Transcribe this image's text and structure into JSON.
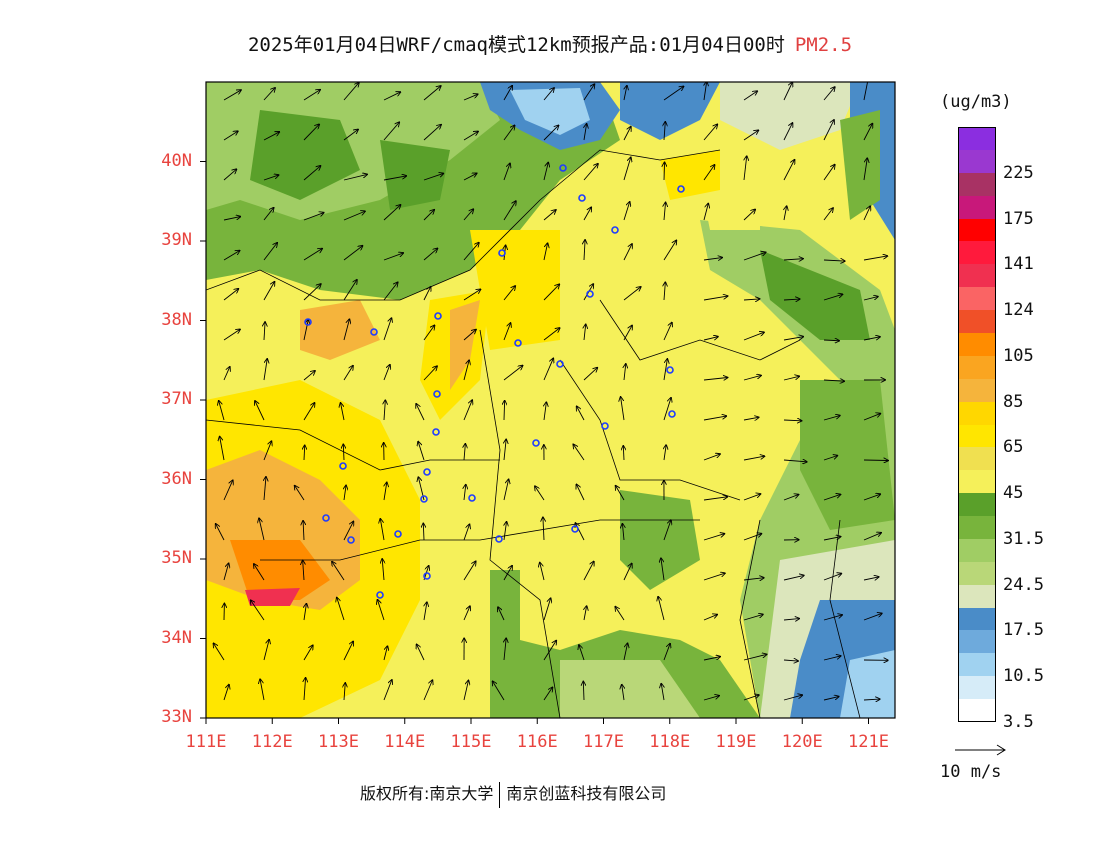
{
  "title": {
    "main": "2025年01月04日WRF/cmaq模式12km预报产品:01月04日00时",
    "pollutant": "PM2.5"
  },
  "map": {
    "lat_labels": [
      "33N",
      "34N",
      "35N",
      "36N",
      "37N",
      "38N",
      "39N",
      "40N"
    ],
    "lon_labels": [
      "111E",
      "112E",
      "113E",
      "114E",
      "115E",
      "116E",
      "117E",
      "118E",
      "119E",
      "120E",
      "121E"
    ],
    "lat_range": [
      33,
      41
    ],
    "lon_range": [
      111,
      121.4
    ]
  },
  "legend": {
    "unit": "(ug/m3)",
    "bins": [
      {
        "color": "#8b2ee0",
        "label": ""
      },
      {
        "color": "#9a38d0",
        "label": "225"
      },
      {
        "color": "#a83264",
        "label": ""
      },
      {
        "color": "#c8187a",
        "label": "175"
      },
      {
        "color": "#ff0000",
        "label": ""
      },
      {
        "color": "#ff1a3c",
        "label": "141"
      },
      {
        "color": "#f03050",
        "label": ""
      },
      {
        "color": "#fa6464",
        "label": "124"
      },
      {
        "color": "#f05028",
        "label": ""
      },
      {
        "color": "#ff8c00",
        "label": "105"
      },
      {
        "color": "#faa520",
        "label": ""
      },
      {
        "color": "#f5b43c",
        "label": "85"
      },
      {
        "color": "#ffd700",
        "label": ""
      },
      {
        "color": "#ffe600",
        "label": "65"
      },
      {
        "color": "#f0e050",
        "label": ""
      },
      {
        "color": "#f5f05a",
        "label": "45"
      },
      {
        "color": "#5aa02a",
        "label": ""
      },
      {
        "color": "#78b43c",
        "label": "31.5"
      },
      {
        "color": "#a0cd64",
        "label": ""
      },
      {
        "color": "#b9d778",
        "label": "24.5"
      },
      {
        "color": "#dce6bc",
        "label": ""
      },
      {
        "color": "#4a8cc8",
        "label": "17.5"
      },
      {
        "color": "#6eaadc",
        "label": ""
      },
      {
        "color": "#a0d2f0",
        "label": "10.5"
      },
      {
        "color": "#d6ecf8",
        "label": ""
      },
      {
        "color": "#ffffff",
        "label": "3.5"
      }
    ]
  },
  "wind_reference": {
    "label": "10 m/s"
  },
  "copyright": {
    "prefix": "版权所有:",
    "org1": "南京大学",
    "org2": "南京创蓝科技有限公司"
  }
}
